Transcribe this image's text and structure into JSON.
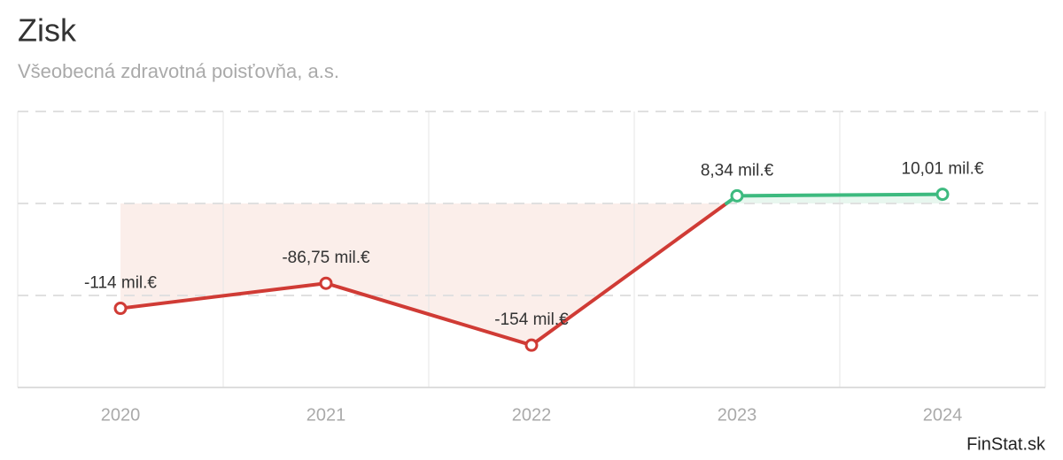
{
  "chart_data": {
    "type": "line",
    "title": "Zisk",
    "subtitle": "Všeobecná zdravotná poisťovňa, a.s.",
    "categories": [
      "2020",
      "2021",
      "2022",
      "2023",
      "2024"
    ],
    "values": [
      -114,
      -86.75,
      -154,
      8.34,
      10.01
    ],
    "value_labels": [
      "-114 mil.€",
      "-86,75 mil.€",
      "-154 mil.€",
      "8,34 mil.€",
      "10,01 mil.€"
    ],
    "negative_color": "#d03b35",
    "positive_color": "#3dba7f",
    "ylim": [
      -200,
      100
    ],
    "yticks": [
      -200,
      -100,
      0,
      100
    ],
    "grid": true,
    "source": "FinStat.sk"
  }
}
